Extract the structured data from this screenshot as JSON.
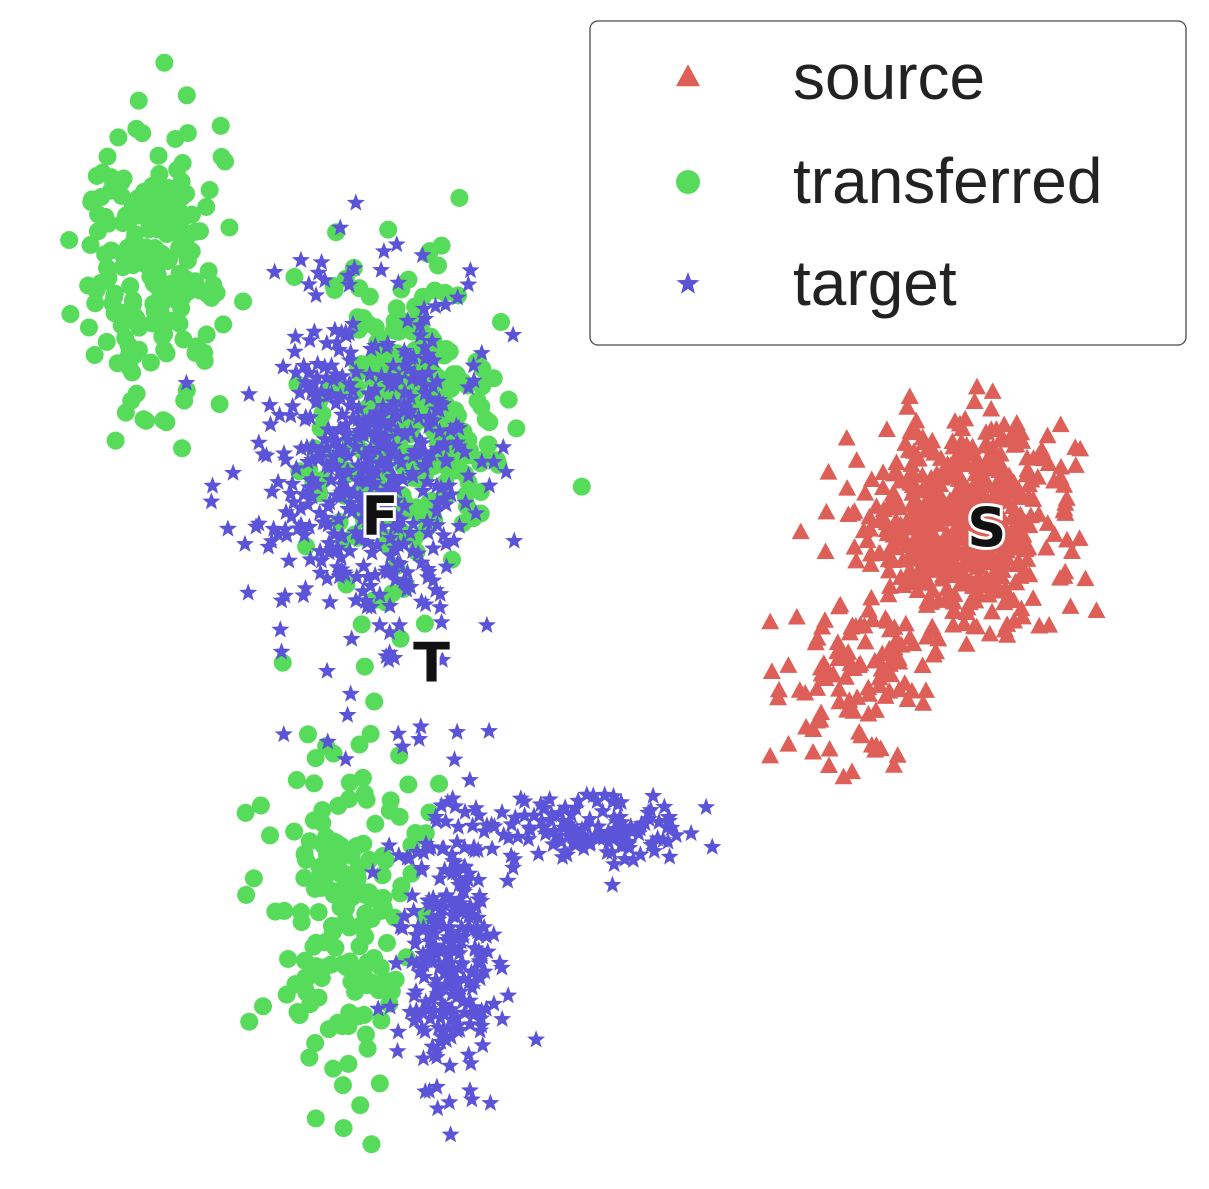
{
  "chart_data": {
    "type": "scatter",
    "title": "",
    "xlabel": "",
    "ylabel": "",
    "xlim": [
      0,
      100
    ],
    "ylim": [
      0,
      100
    ],
    "grid": false,
    "axes_visible": false,
    "legend": {
      "position": "top-right"
    },
    "series": [
      {
        "name": "source",
        "marker": "triangle",
        "color": "#dd5f57",
        "count": 650,
        "clusters": [
          {
            "cx": 82.0,
            "cy": 57.0,
            "sx": 8.0,
            "sy": 8.5,
            "weight": 0.85
          },
          {
            "cx": 72.0,
            "cy": 43.0,
            "sx": 6.0,
            "sy": 6.0,
            "weight": 0.15
          }
        ]
      },
      {
        "name": "transferred",
        "marker": "circle",
        "color": "#57db5a",
        "count": 700,
        "clusters": [
          {
            "cx": 11.0,
            "cy": 80.0,
            "sx": 5.0,
            "sy": 11.0,
            "weight": 0.3
          },
          {
            "cx": 33.0,
            "cy": 66.0,
            "sx": 7.0,
            "sy": 12.0,
            "weight": 0.45
          },
          {
            "cx": 28.0,
            "cy": 23.0,
            "sx": 6.0,
            "sy": 14.0,
            "weight": 0.25
          }
        ]
      },
      {
        "name": "target",
        "marker": "star",
        "color": "#5b54d8",
        "count": 900,
        "clusters": [
          {
            "cx": 30.0,
            "cy": 62.0,
            "sx": 8.0,
            "sy": 14.0,
            "weight": 0.55
          },
          {
            "cx": 37.0,
            "cy": 20.0,
            "sx": 4.0,
            "sy": 12.0,
            "weight": 0.3
          },
          {
            "cx": 50.0,
            "cy": 30.0,
            "sx": 8.0,
            "sy": 3.0,
            "weight": 0.15
          }
        ]
      }
    ],
    "annotations": [
      {
        "text": "F",
        "x": 31.0,
        "y": 57.5
      },
      {
        "text": "T",
        "x": 35.5,
        "y": 44.5
      },
      {
        "text": "S",
        "x": 84.0,
        "y": 56.5
      }
    ]
  }
}
